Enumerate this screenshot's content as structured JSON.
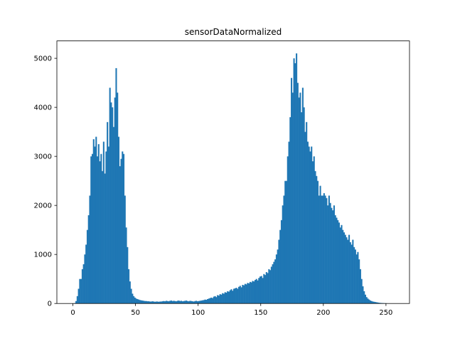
{
  "chart_data": {
    "type": "histogram",
    "title": "sensorDataNormalized",
    "color": "#1f77b4",
    "bins": [
      0,
      1,
      2,
      3,
      4,
      5,
      6,
      7,
      8,
      9,
      10,
      11,
      12,
      13,
      14,
      15,
      16,
      17,
      18,
      19,
      20,
      21,
      22,
      23,
      24,
      25,
      26,
      27,
      28,
      29,
      30,
      31,
      32,
      33,
      34,
      35,
      36,
      37,
      38,
      39,
      40,
      41,
      42,
      43,
      44,
      45,
      46,
      47,
      48,
      49,
      50,
      51,
      52,
      53,
      54,
      55,
      56,
      57,
      58,
      59,
      60,
      61,
      62,
      63,
      64,
      65,
      66,
      67,
      68,
      69,
      70,
      71,
      72,
      73,
      74,
      75,
      76,
      77,
      78,
      79,
      80,
      81,
      82,
      83,
      84,
      85,
      86,
      87,
      88,
      89,
      90,
      91,
      92,
      93,
      94,
      95,
      96,
      97,
      98,
      99,
      100,
      101,
      102,
      103,
      104,
      105,
      106,
      107,
      108,
      109,
      110,
      111,
      112,
      113,
      114,
      115,
      116,
      117,
      118,
      119,
      120,
      121,
      122,
      123,
      124,
      125,
      126,
      127,
      128,
      129,
      130,
      131,
      132,
      133,
      134,
      135,
      136,
      137,
      138,
      139,
      140,
      141,
      142,
      143,
      144,
      145,
      146,
      147,
      148,
      149,
      150,
      151,
      152,
      153,
      154,
      155,
      156,
      157,
      158,
      159,
      160,
      161,
      162,
      163,
      164,
      165,
      166,
      167,
      168,
      169,
      170,
      171,
      172,
      173,
      174,
      175,
      176,
      177,
      178,
      179,
      180,
      181,
      182,
      183,
      184,
      185,
      186,
      187,
      188,
      189,
      190,
      191,
      192,
      193,
      194,
      195,
      196,
      197,
      198,
      199,
      200,
      201,
      202,
      203,
      204,
      205,
      206,
      207,
      208,
      209,
      210,
      211,
      212,
      213,
      214,
      215,
      216,
      217,
      218,
      219,
      220,
      221,
      222,
      223,
      224,
      225,
      226,
      227,
      228,
      229,
      230,
      231,
      232,
      233,
      234,
      235,
      236,
      237,
      238,
      239,
      240,
      241,
      242,
      243,
      244,
      245,
      246,
      247,
      248,
      249,
      250,
      251,
      252,
      253,
      254,
      255,
      256
    ],
    "values": [
      0,
      10,
      50,
      150,
      300,
      500,
      500,
      700,
      800,
      1000,
      1200,
      1500,
      1800,
      2200,
      3000,
      3050,
      3350,
      3200,
      3400,
      3000,
      3250,
      2900,
      3050,
      2700,
      3300,
      2650,
      3100,
      3700,
      3200,
      4400,
      4100,
      4000,
      3600,
      4200,
      4800,
      4300,
      3400,
      2800,
      2950,
      3100,
      3050,
      2200,
      1550,
      1150,
      700,
      450,
      300,
      200,
      150,
      120,
      100,
      90,
      80,
      70,
      65,
      60,
      55,
      50,
      50,
      45,
      45,
      40,
      40,
      45,
      40,
      35,
      40,
      40,
      35,
      40,
      40,
      45,
      50,
      45,
      55,
      50,
      45,
      55,
      60,
      50,
      55,
      50,
      45,
      55,
      60,
      50,
      55,
      45,
      50,
      55,
      60,
      50,
      45,
      55,
      50,
      45,
      40,
      50,
      55,
      45,
      50,
      55,
      60,
      65,
      70,
      80,
      75,
      90,
      100,
      110,
      120,
      110,
      140,
      150,
      130,
      170,
      160,
      190,
      180,
      210,
      200,
      230,
      220,
      250,
      240,
      270,
      290,
      260,
      300,
      310,
      320,
      300,
      340,
      360,
      330,
      380,
      370,
      400,
      390,
      420,
      410,
      440,
      430,
      460,
      450,
      480,
      500,
      470,
      520,
      550,
      560,
      520,
      600,
      580,
      640,
      620,
      700,
      680,
      750,
      800,
      850,
      900,
      1000,
      1100,
      1300,
      1500,
      1700,
      2000,
      2200,
      2500,
      2500,
      3000,
      3300,
      3800,
      4600,
      4300,
      5000,
      4900,
      5100,
      4500,
      4200,
      4300,
      3900,
      4400,
      4000,
      3500,
      3700,
      3300,
      3200,
      3100,
      3200,
      2900,
      3000,
      2700,
      2600,
      2500,
      2200,
      2400,
      2200,
      2200,
      2250,
      2200,
      2150,
      2000,
      2200,
      2050,
      1950,
      1900,
      2000,
      1800,
      1750,
      1700,
      1650,
      1550,
      1600,
      1500,
      1450,
      1400,
      1350,
      1300,
      1400,
      1250,
      1200,
      1300,
      1150,
      1100,
      1000,
      1050,
      900,
      700,
      500,
      350,
      250,
      180,
      130,
      100,
      80,
      60,
      50,
      40,
      35,
      30,
      25,
      20,
      15,
      12,
      10,
      8,
      6,
      5,
      4,
      3,
      2,
      1,
      1,
      0
    ],
    "xlim": [
      -12.8,
      268.8
    ],
    "xticks": [
      0,
      50,
      100,
      150,
      200,
      250
    ],
    "ylim": [
      0,
      5355
    ],
    "yticks": [
      0,
      1000,
      2000,
      3000,
      4000,
      5000
    ]
  }
}
